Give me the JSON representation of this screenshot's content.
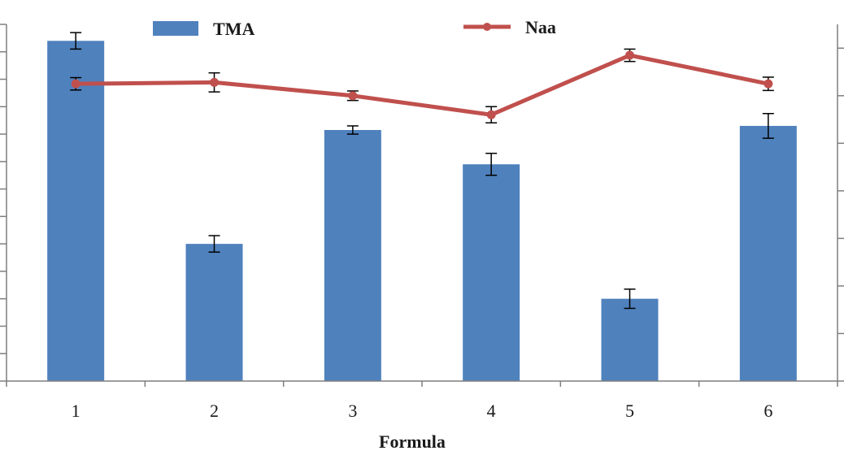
{
  "chart_data": {
    "type": "bar",
    "categories": [
      "1",
      "2",
      "3",
      "4",
      "5",
      "6"
    ],
    "xlabel": "Formula",
    "ylabel": "",
    "title": "",
    "legend_placement": "top",
    "grid": false,
    "left_axis": {
      "ylim": [
        0,
        13
      ],
      "tick_step": 1,
      "tick_labels_visible": false
    },
    "right_axis": {
      "ylim": [
        0,
        7.5
      ],
      "tick_step": 1,
      "tick_labels_visible": false
    },
    "series": [
      {
        "name": "TMA",
        "kind": "bar",
        "axis": "left",
        "color": "#4f81bd",
        "values": [
          12.4,
          5.0,
          9.15,
          7.9,
          3.0,
          9.3
        ],
        "errors": [
          0.3,
          0.3,
          0.15,
          0.4,
          0.35,
          0.45
        ]
      },
      {
        "name": "Naa",
        "kind": "line",
        "axis": "right",
        "color": "#c0504d",
        "values": [
          6.25,
          6.28,
          6.0,
          5.6,
          6.85,
          6.25
        ],
        "errors": [
          0.13,
          0.2,
          0.1,
          0.17,
          0.13,
          0.14
        ]
      }
    ]
  }
}
